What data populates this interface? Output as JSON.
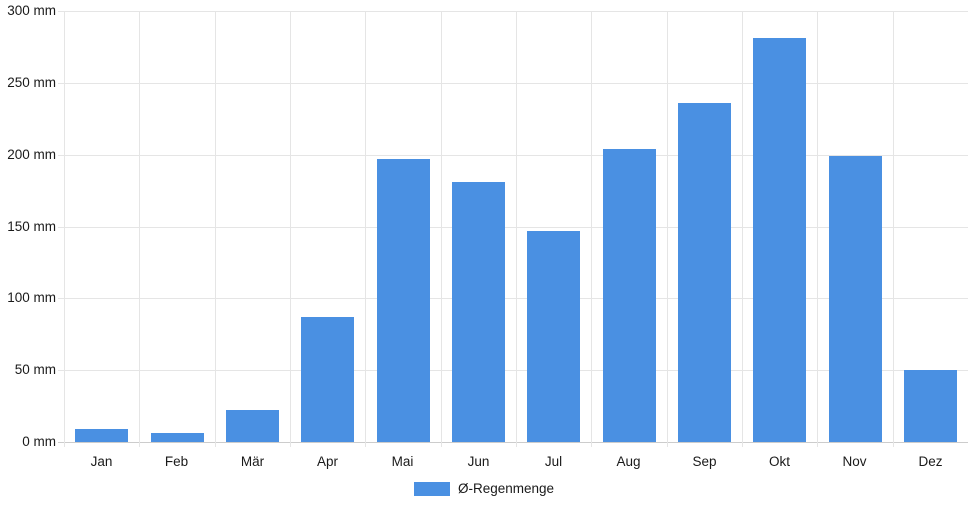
{
  "chart": {
    "colors": {
      "bar": "#4a90e2",
      "grid": "#e5e5e5",
      "axis": "#cccccc",
      "text": "#1a1a1a",
      "background": "#ffffff"
    },
    "legend": {
      "label": "Ø-Regenmenge"
    }
  },
  "chart_data": {
    "type": "bar",
    "title": "",
    "xlabel": "",
    "ylabel": "",
    "categories": [
      "Jan",
      "Feb",
      "Mär",
      "Apr",
      "Mai",
      "Jun",
      "Jul",
      "Aug",
      "Sep",
      "Okt",
      "Nov",
      "Dez"
    ],
    "series": [
      {
        "name": "Ø-Regenmenge",
        "values": [
          9,
          6,
          22,
          87,
          197,
          181,
          147,
          204,
          236,
          281,
          199,
          50
        ]
      }
    ],
    "ylim": [
      0,
      300
    ],
    "ytick_step": 50,
    "ytick_suffix": " mm",
    "grid": true,
    "legend_position": "bottom"
  }
}
